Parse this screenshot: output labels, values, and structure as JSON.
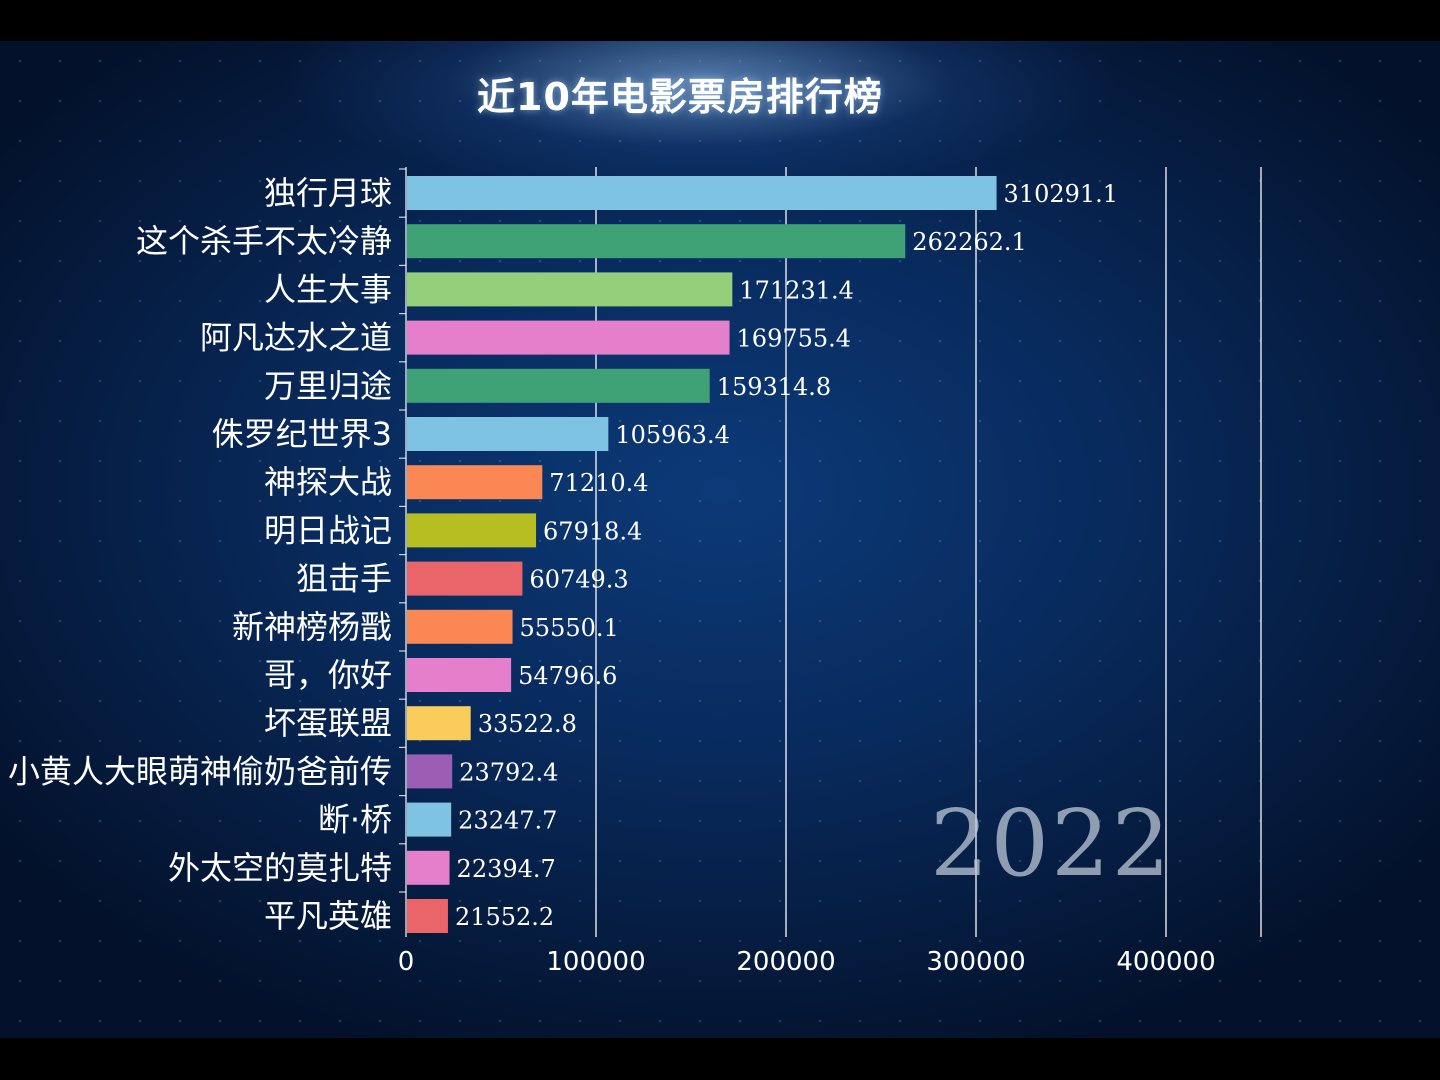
{
  "chart_data": {
    "type": "bar",
    "orientation": "horizontal",
    "title": "近10年电影票房排行榜",
    "year": "2022",
    "xlabel": "",
    "ylabel": "",
    "xlim": [
      0,
      450000
    ],
    "x_ticks": [
      0,
      100000,
      200000,
      300000,
      400000
    ],
    "x_tick_labels": [
      "0",
      "100000",
      "200000",
      "300000",
      "400000"
    ],
    "grid": "vertical",
    "bars": [
      {
        "name": "独行月球",
        "value": 310291.1,
        "label": "310291.1",
        "color": "#7ec4e2"
      },
      {
        "name": "这个杀手不太冷静",
        "value": 262262.1,
        "label": "262262.1",
        "color": "#3ea276"
      },
      {
        "name": "人生大事",
        "value": 171231.4,
        "label": "171231.4",
        "color": "#94d07a"
      },
      {
        "name": "阿凡达水之道",
        "value": 169755.4,
        "label": "169755.4",
        "color": "#e57fcb"
      },
      {
        "name": "万里归途",
        "value": 159314.8,
        "label": "159314.8",
        "color": "#3ea276"
      },
      {
        "name": "侏罗纪世界3",
        "value": 105963.4,
        "label": "105963.4",
        "color": "#7ec4e2"
      },
      {
        "name": "神探大战",
        "value": 71210.4,
        "label": "71210.4",
        "color": "#fb8755"
      },
      {
        "name": "明日战记",
        "value": 67918.4,
        "label": "67918.4",
        "color": "#b7be22"
      },
      {
        "name": "狙击手",
        "value": 60749.3,
        "label": "60749.3",
        "color": "#e9656a"
      },
      {
        "name": "新神榜杨戬",
        "value": 55550.1,
        "label": "55550.1",
        "color": "#fb8755"
      },
      {
        "name": "哥，你好",
        "value": 54796.6,
        "label": "54796.6",
        "color": "#e57fcb"
      },
      {
        "name": "坏蛋联盟",
        "value": 33522.8,
        "label": "33522.8",
        "color": "#f9cc5c"
      },
      {
        "name": "小黄人大眼萌神偷奶爸前传",
        "value": 23792.4,
        "label": "23792.4",
        "color": "#9a5fb5"
      },
      {
        "name": "断·桥",
        "value": 23247.7,
        "label": "23247.7",
        "color": "#7ec4e2"
      },
      {
        "name": "外太空的莫扎特",
        "value": 22394.7,
        "label": "22394.7",
        "color": "#e57fcb"
      },
      {
        "name": "平凡英雄",
        "value": 21552.2,
        "label": "21552.2",
        "color": "#e9656a"
      }
    ]
  }
}
